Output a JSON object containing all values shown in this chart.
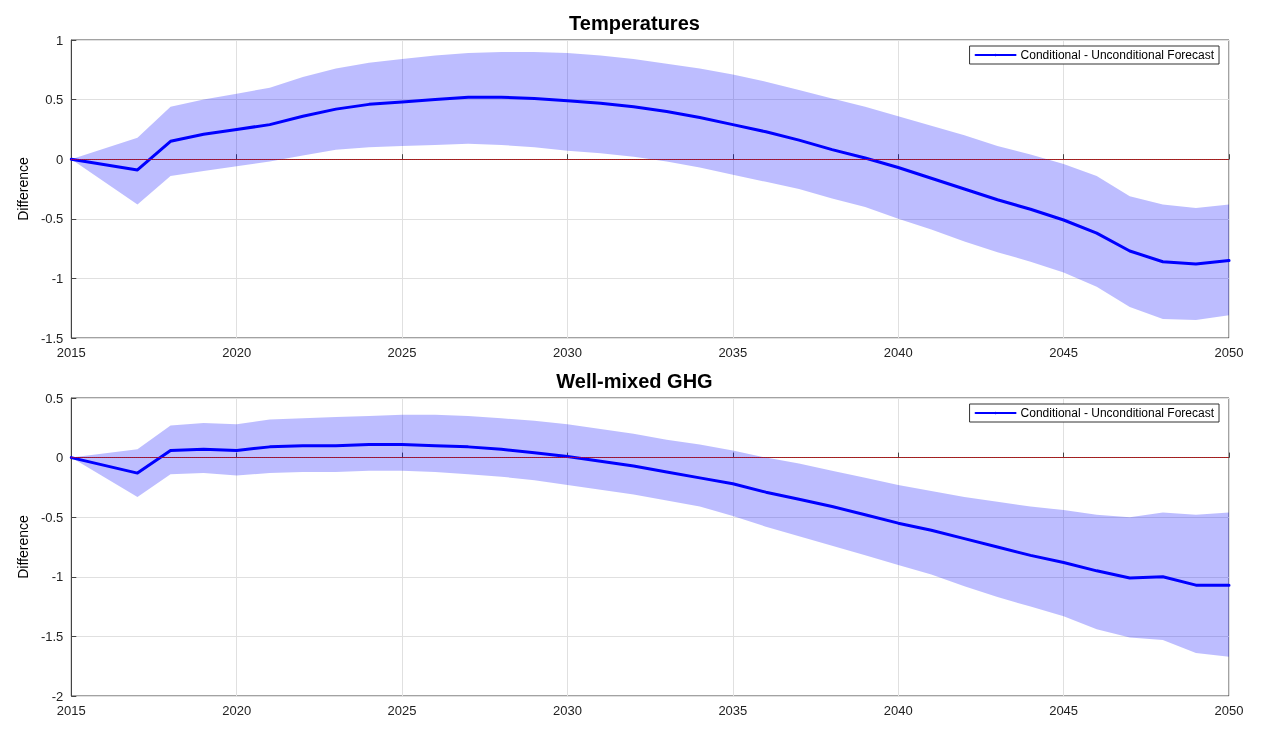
{
  "chart_data": [
    {
      "type": "line",
      "title": "Temperatures",
      "ylabel": "Difference",
      "x": [
        2015,
        2017,
        2018,
        2019,
        2020,
        2021,
        2022,
        2023,
        2024,
        2025,
        2026,
        2027,
        2028,
        2029,
        2030,
        2031,
        2032,
        2033,
        2034,
        2035,
        2036,
        2037,
        2038,
        2039,
        2040,
        2041,
        2042,
        2043,
        2044,
        2045,
        2046,
        2047,
        2048,
        2049,
        2050
      ],
      "series": [
        {
          "name": "Conditional - Unconditional Forecast",
          "color": "#0000ff",
          "values": [
            0,
            -0.09,
            0.15,
            0.21,
            0.25,
            0.29,
            0.36,
            0.42,
            0.46,
            0.48,
            0.5,
            0.52,
            0.52,
            0.51,
            0.49,
            0.47,
            0.44,
            0.4,
            0.35,
            0.29,
            0.23,
            0.16,
            0.08,
            0.01,
            -0.07,
            -0.16,
            -0.25,
            -0.34,
            -0.42,
            -0.51,
            -0.62,
            -0.77,
            -0.86,
            -0.88,
            -0.85
          ],
          "lower": [
            0,
            -0.38,
            -0.14,
            -0.1,
            -0.06,
            -0.02,
            0.03,
            0.08,
            0.1,
            0.11,
            0.12,
            0.13,
            0.12,
            0.1,
            0.07,
            0.05,
            0.02,
            -0.02,
            -0.07,
            -0.13,
            -0.19,
            -0.25,
            -0.33,
            -0.4,
            -0.5,
            -0.59,
            -0.69,
            -0.78,
            -0.86,
            -0.95,
            -1.07,
            -1.24,
            -1.34,
            -1.35,
            -1.31
          ],
          "upper": [
            0,
            0.18,
            0.44,
            0.5,
            0.55,
            0.6,
            0.69,
            0.76,
            0.81,
            0.84,
            0.87,
            0.89,
            0.9,
            0.9,
            0.89,
            0.87,
            0.84,
            0.8,
            0.76,
            0.71,
            0.65,
            0.58,
            0.51,
            0.44,
            0.36,
            0.28,
            0.2,
            0.11,
            0.04,
            -0.04,
            -0.14,
            -0.31,
            -0.38,
            -0.41,
            -0.38
          ]
        }
      ],
      "ref_lines": [
        {
          "axis": "y",
          "value": 0,
          "color": "#ff0000",
          "line_style": "dotted"
        }
      ],
      "xlim": [
        2015,
        2050
      ],
      "xticks": [
        2015,
        2020,
        2025,
        2030,
        2035,
        2040,
        2045,
        2050
      ],
      "ylim": [
        -1.5,
        1
      ],
      "yticks": [
        -1.5,
        -1,
        -0.5,
        0,
        0.5,
        1
      ],
      "grid": true,
      "legend": "top right",
      "line_style": "solid",
      "marker": "none"
    },
    {
      "type": "line",
      "title": "Well-mixed GHG",
      "ylabel": "Difference",
      "x": [
        2015,
        2017,
        2018,
        2019,
        2020,
        2021,
        2022,
        2023,
        2024,
        2025,
        2026,
        2027,
        2028,
        2029,
        2030,
        2031,
        2032,
        2033,
        2034,
        2035,
        2036,
        2037,
        2038,
        2039,
        2040,
        2041,
        2042,
        2043,
        2044,
        2045,
        2046,
        2047,
        2048,
        2049,
        2050
      ],
      "series": [
        {
          "name": "Conditional - Unconditional Forecast",
          "color": "#0000ff",
          "values": [
            0,
            -0.13,
            0.06,
            0.07,
            0.06,
            0.09,
            0.1,
            0.1,
            0.11,
            0.11,
            0.1,
            0.09,
            0.07,
            0.04,
            0.01,
            -0.03,
            -0.07,
            -0.12,
            -0.17,
            -0.22,
            -0.29,
            -0.35,
            -0.41,
            -0.48,
            -0.55,
            -0.61,
            -0.68,
            -0.75,
            -0.82,
            -0.88,
            -0.95,
            -1.01,
            -1,
            -1.07,
            -1.07
          ],
          "lower": [
            0,
            -0.33,
            -0.14,
            -0.13,
            -0.15,
            -0.13,
            -0.12,
            -0.12,
            -0.11,
            -0.11,
            -0.12,
            -0.14,
            -0.16,
            -0.19,
            -0.23,
            -0.27,
            -0.31,
            -0.36,
            -0.41,
            -0.49,
            -0.58,
            -0.66,
            -0.74,
            -0.82,
            -0.9,
            -0.98,
            -1.08,
            -1.17,
            -1.25,
            -1.33,
            -1.44,
            -1.51,
            -1.53,
            -1.64,
            -1.67
          ],
          "upper": [
            0,
            0.07,
            0.27,
            0.29,
            0.28,
            0.32,
            0.33,
            0.34,
            0.35,
            0.36,
            0.36,
            0.35,
            0.33,
            0.31,
            0.28,
            0.24,
            0.2,
            0.15,
            0.11,
            0.06,
            0,
            -0.05,
            -0.11,
            -0.17,
            -0.23,
            -0.28,
            -0.33,
            -0.37,
            -0.41,
            -0.44,
            -0.48,
            -0.5,
            -0.46,
            -0.48,
            -0.46
          ]
        }
      ],
      "ref_lines": [
        {
          "axis": "y",
          "value": 0,
          "color": "#ff0000",
          "line_style": "dotted"
        }
      ],
      "xlim": [
        2015,
        2050
      ],
      "xticks": [
        2015,
        2020,
        2025,
        2030,
        2035,
        2040,
        2045,
        2050
      ],
      "ylim": [
        -2,
        0.5
      ],
      "yticks": [
        -2,
        -1.5,
        -1,
        -0.5,
        0,
        0.5
      ],
      "grid": true,
      "legend": "top right",
      "line_style": "solid",
      "marker": "none"
    }
  ]
}
